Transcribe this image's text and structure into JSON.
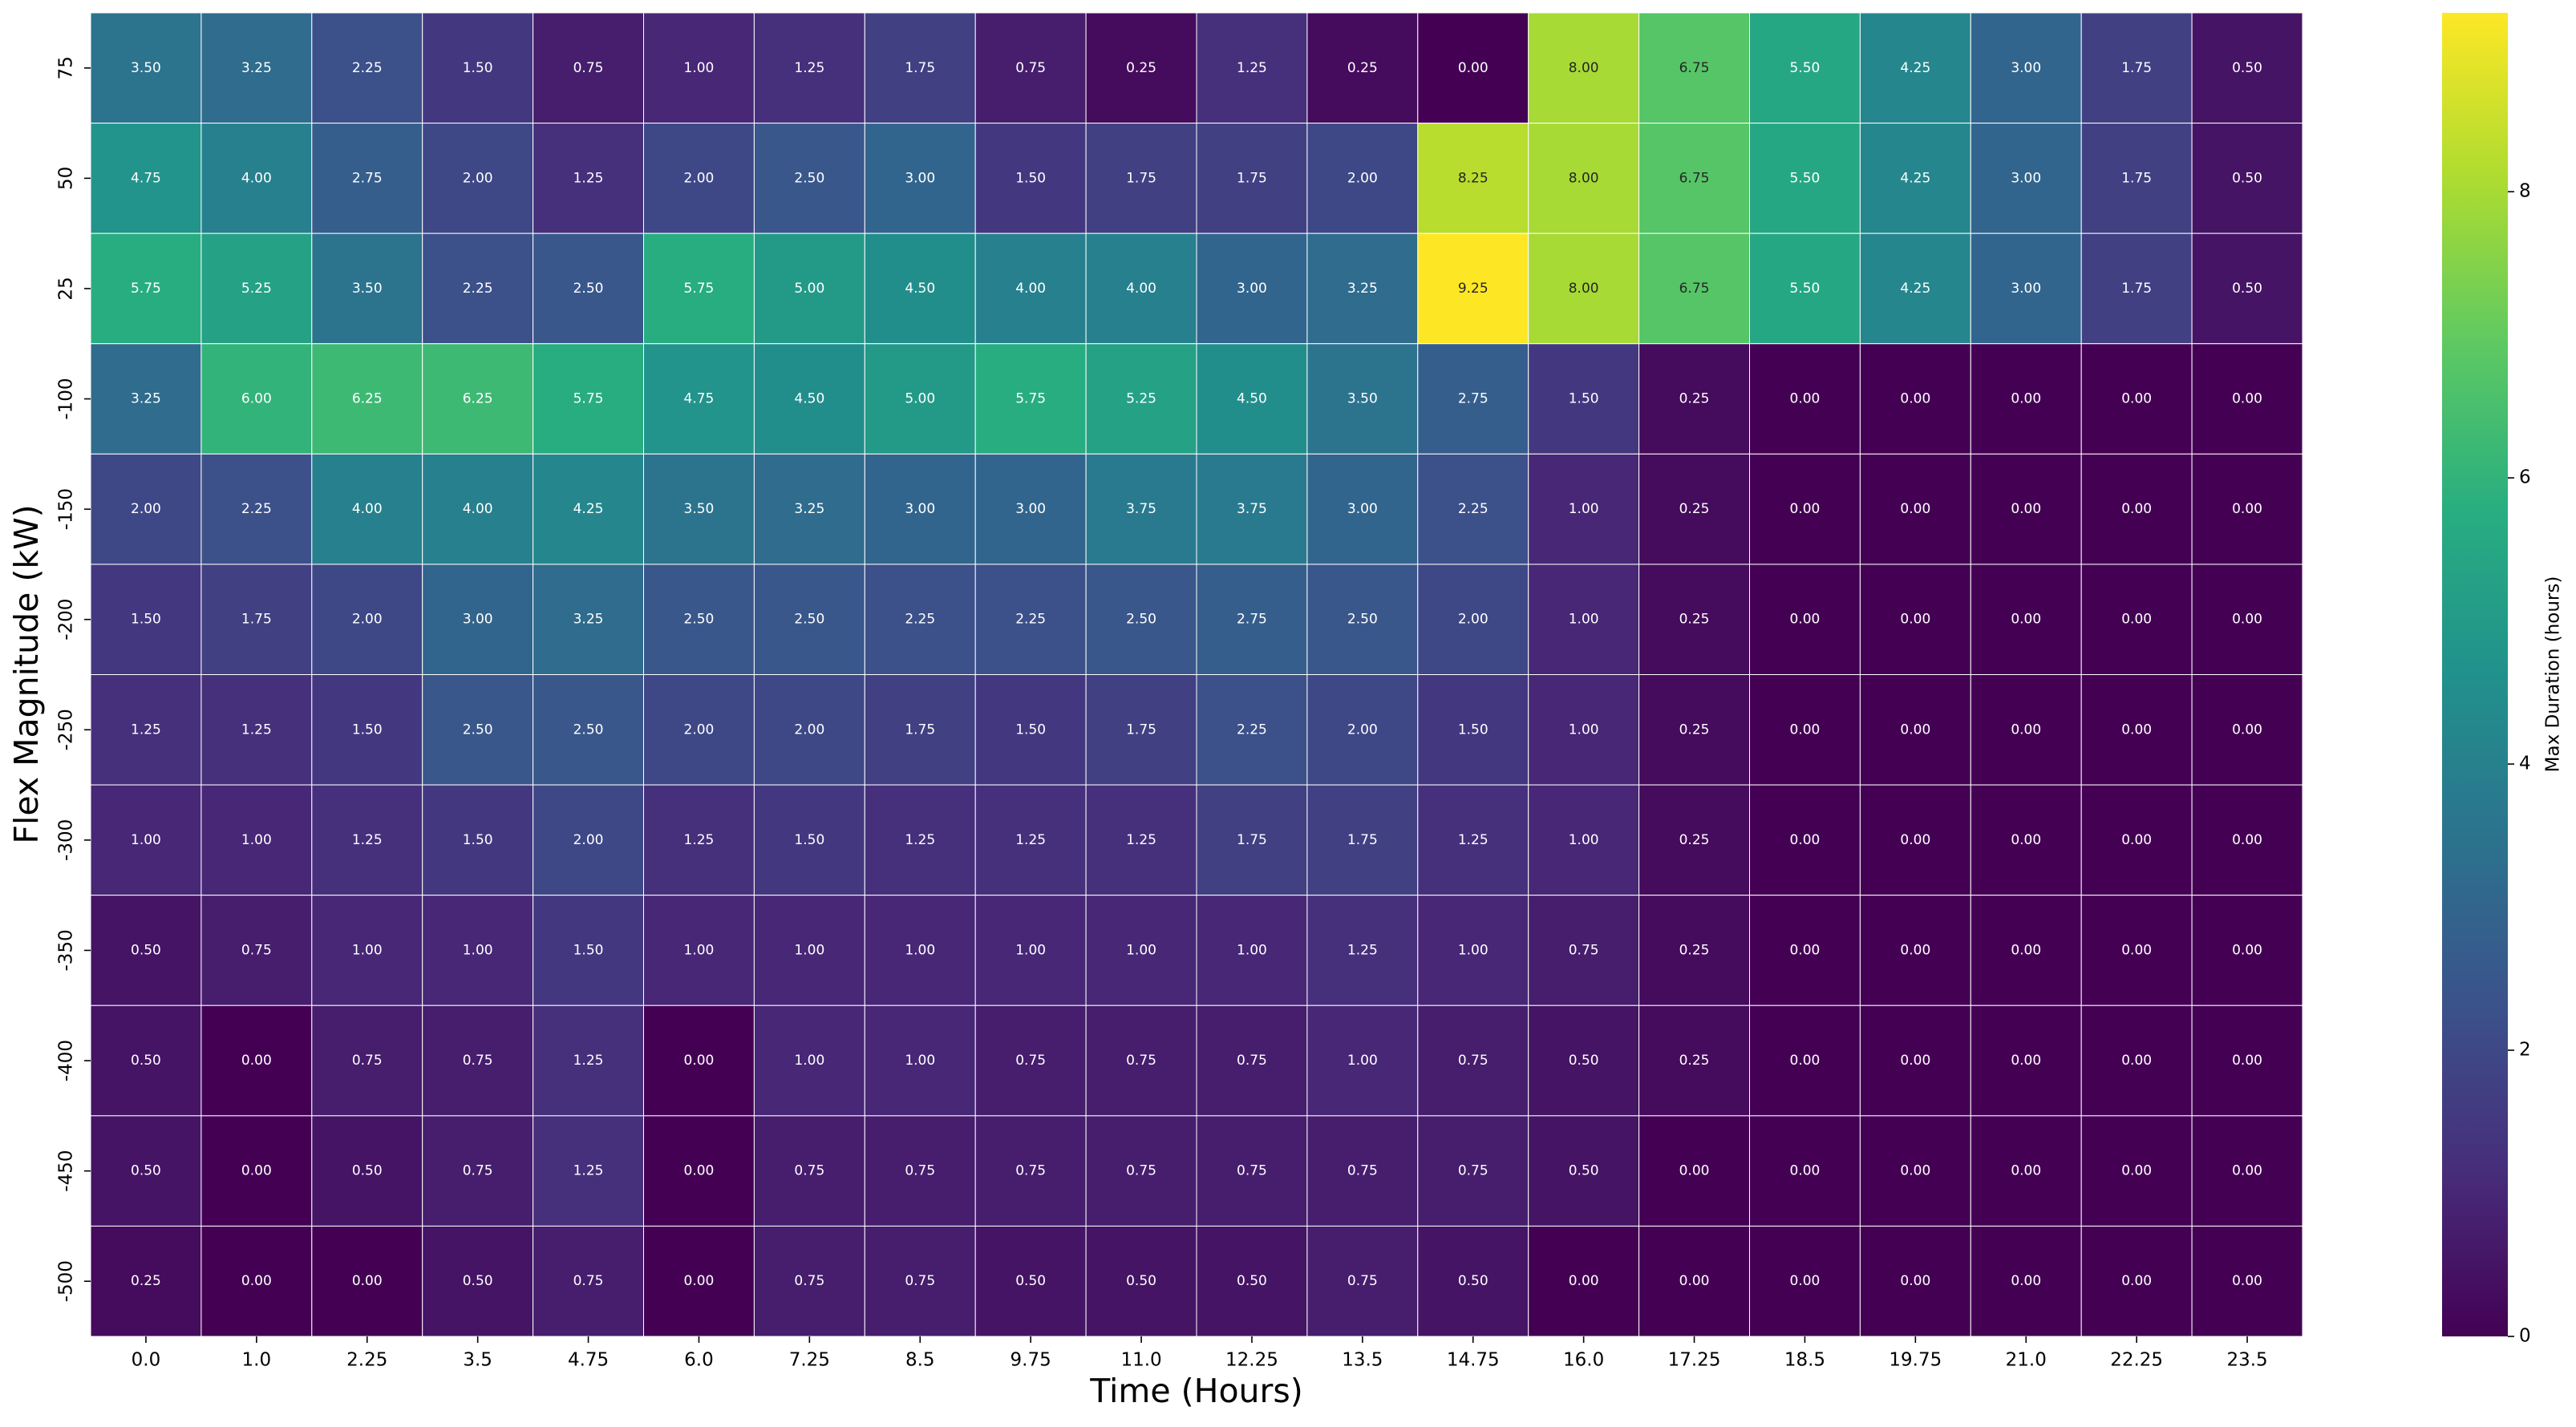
{
  "chart_data": {
    "type": "heatmap",
    "x_label": "Time (Hours)",
    "y_label": "Flex Magnitude (kW)",
    "colorbar_label": "Max Duration (hours)",
    "colormap": "viridis",
    "categories": [
      "0.0",
      "1.0",
      "2.25",
      "3.5",
      "4.75",
      "6.0",
      "7.25",
      "8.5",
      "9.75",
      "11.0",
      "12.25",
      "13.5",
      "14.75",
      "16.0",
      "17.25",
      "18.5",
      "19.75",
      "21.0",
      "22.25",
      "23.5"
    ],
    "rows": [
      "75",
      "50",
      "25",
      "-100",
      "-150",
      "-200",
      "-250",
      "-300",
      "-350",
      "-400",
      "-450",
      "-500"
    ],
    "values": [
      [
        3.5,
        3.25,
        2.25,
        1.5,
        0.75,
        1.0,
        1.25,
        1.75,
        0.75,
        0.25,
        1.25,
        0.25,
        0.0,
        8.0,
        6.75,
        5.5,
        4.25,
        3.0,
        1.75,
        0.5
      ],
      [
        4.75,
        4.0,
        2.75,
        2.0,
        1.25,
        2.0,
        2.5,
        3.0,
        1.5,
        1.75,
        1.75,
        2.0,
        8.25,
        8.0,
        6.75,
        5.5,
        4.25,
        3.0,
        1.75,
        0.5
      ],
      [
        5.75,
        5.25,
        3.5,
        2.25,
        2.5,
        5.75,
        5.0,
        4.5,
        4.0,
        4.0,
        3.0,
        3.25,
        9.25,
        8.0,
        6.75,
        5.5,
        4.25,
        3.0,
        1.75,
        0.5
      ],
      [
        3.25,
        6.0,
        6.25,
        6.25,
        5.75,
        4.75,
        4.5,
        5.0,
        5.75,
        5.25,
        4.5,
        3.5,
        2.75,
        1.5,
        0.25,
        0.0,
        0.0,
        0.0,
        0.0,
        0.0
      ],
      [
        2.0,
        2.25,
        4.0,
        4.0,
        4.25,
        3.5,
        3.25,
        3.0,
        3.0,
        3.75,
        3.75,
        3.0,
        2.25,
        1.0,
        0.25,
        0.0,
        0.0,
        0.0,
        0.0,
        0.0
      ],
      [
        1.5,
        1.75,
        2.0,
        3.0,
        3.25,
        2.5,
        2.5,
        2.25,
        2.25,
        2.5,
        2.75,
        2.5,
        2.0,
        1.0,
        0.25,
        0.0,
        0.0,
        0.0,
        0.0,
        0.0
      ],
      [
        1.25,
        1.25,
        1.5,
        2.5,
        2.5,
        2.0,
        2.0,
        1.75,
        1.5,
        1.75,
        2.25,
        2.0,
        1.5,
        1.0,
        0.25,
        0.0,
        0.0,
        0.0,
        0.0,
        0.0
      ],
      [
        1.0,
        1.0,
        1.25,
        1.5,
        2.0,
        1.25,
        1.5,
        1.25,
        1.25,
        1.25,
        1.75,
        1.75,
        1.25,
        1.0,
        0.25,
        0.0,
        0.0,
        0.0,
        0.0,
        0.0
      ],
      [
        0.5,
        0.75,
        1.0,
        1.0,
        1.5,
        1.0,
        1.0,
        1.0,
        1.0,
        1.0,
        1.0,
        1.25,
        1.0,
        0.75,
        0.25,
        0.0,
        0.0,
        0.0,
        0.0,
        0.0
      ],
      [
        0.5,
        0.0,
        0.75,
        0.75,
        1.25,
        0.0,
        1.0,
        1.0,
        0.75,
        0.75,
        0.75,
        1.0,
        0.75,
        0.5,
        0.25,
        0.0,
        0.0,
        0.0,
        0.0,
        0.0
      ],
      [
        0.5,
        0.0,
        0.5,
        0.75,
        1.25,
        0.0,
        0.75,
        0.75,
        0.75,
        0.75,
        0.75,
        0.75,
        0.75,
        0.5,
        0.0,
        0.0,
        0.0,
        0.0,
        0.0,
        0.0
      ],
      [
        0.25,
        0.0,
        0.0,
        0.5,
        0.75,
        0.0,
        0.75,
        0.75,
        0.5,
        0.5,
        0.5,
        0.75,
        0.5,
        0.0,
        0.0,
        0.0,
        0.0,
        0.0,
        0.0,
        0.0
      ]
    ],
    "value_labels": [
      [
        "3.50",
        "3.25",
        "2.25",
        "1.50",
        "0.75",
        "1.00",
        "1.25",
        "1.75",
        "0.75",
        "0.25",
        "1.25",
        "0.25",
        "0.00",
        "8.00",
        "6.75",
        "5.50",
        "4.25",
        "3.00",
        "1.75",
        "0.50"
      ],
      [
        "4.75",
        "4.00",
        "2.75",
        "2.00",
        "1.25",
        "2.00",
        "2.50",
        "3.00",
        "1.50",
        "1.75",
        "1.75",
        "2.00",
        "8.25",
        "8.00",
        "6.75",
        "5.50",
        "4.25",
        "3.00",
        "1.75",
        "0.50"
      ],
      [
        "5.75",
        "5.25",
        "3.50",
        "2.25",
        "2.50",
        "5.75",
        "5.00",
        "4.50",
        "4.00",
        "4.00",
        "3.00",
        "3.25",
        "9.25",
        "8.00",
        "6.75",
        "5.50",
        "4.25",
        "3.00",
        "1.75",
        "0.50"
      ],
      [
        "3.25",
        "6.00",
        "6.25",
        "6.25",
        "5.75",
        "4.75",
        "4.50",
        "5.00",
        "5.75",
        "5.25",
        "4.50",
        "3.50",
        "2.75",
        "1.50",
        "0.25",
        "0.00",
        "0.00",
        "0.00",
        "0.00",
        "0.00"
      ],
      [
        "2.00",
        "2.25",
        "4.00",
        "4.00",
        "4.25",
        "3.50",
        "3.25",
        "3.00",
        "3.00",
        "3.75",
        "3.75",
        "3.00",
        "2.25",
        "1.00",
        "0.25",
        "0.00",
        "0.00",
        "0.00",
        "0.00",
        "0.00"
      ],
      [
        "1.50",
        "1.75",
        "2.00",
        "3.00",
        "3.25",
        "2.50",
        "2.50",
        "2.25",
        "2.25",
        "2.50",
        "2.75",
        "2.50",
        "2.00",
        "1.00",
        "0.25",
        "0.00",
        "0.00",
        "0.00",
        "0.00",
        "0.00"
      ],
      [
        "1.25",
        "1.25",
        "1.50",
        "2.50",
        "2.50",
        "2.00",
        "2.00",
        "1.75",
        "1.50",
        "1.75",
        "2.25",
        "2.00",
        "1.50",
        "1.00",
        "0.25",
        "0.00",
        "0.00",
        "0.00",
        "0.00",
        "0.00"
      ],
      [
        "1.00",
        "1.00",
        "1.25",
        "1.50",
        "2.00",
        "1.25",
        "1.50",
        "1.25",
        "1.25",
        "1.25",
        "1.75",
        "1.75",
        "1.25",
        "1.00",
        "0.25",
        "0.00",
        "0.00",
        "0.00",
        "0.00",
        "0.00"
      ],
      [
        "0.50",
        "0.75",
        "1.00",
        "1.00",
        "1.50",
        "1.00",
        "1.00",
        "1.00",
        "1.00",
        "1.00",
        "1.00",
        "1.25",
        "1.00",
        "0.75",
        "0.25",
        "0.00",
        "0.00",
        "0.00",
        "0.00",
        "0.00"
      ],
      [
        "0.50",
        "0.00",
        "0.75",
        "0.75",
        "1.25",
        "0.00",
        "1.00",
        "1.00",
        "0.75",
        "0.75",
        "0.75",
        "1.00",
        "0.75",
        "0.50",
        "0.25",
        "0.00",
        "0.00",
        "0.00",
        "0.00",
        "0.00"
      ],
      [
        "0.50",
        "0.00",
        "0.50",
        "0.75",
        "1.25",
        "0.00",
        "0.75",
        "0.75",
        "0.75",
        "0.75",
        "0.75",
        "0.75",
        "0.75",
        "0.50",
        "0.00",
        "0.00",
        "0.00",
        "0.00",
        "0.00",
        "0.00"
      ],
      [
        "0.25",
        "0.00",
        "0.00",
        "0.50",
        "0.75",
        "0.00",
        "0.75",
        "0.75",
        "0.50",
        "0.50",
        "0.50",
        "0.75",
        "0.50",
        "0.00",
        "0.00",
        "0.00",
        "0.00",
        "0.00",
        "0.00",
        "0.00"
      ]
    ],
    "clim": [
      0,
      9.25
    ],
    "cticks": [
      0,
      2,
      4,
      6,
      8
    ]
  }
}
